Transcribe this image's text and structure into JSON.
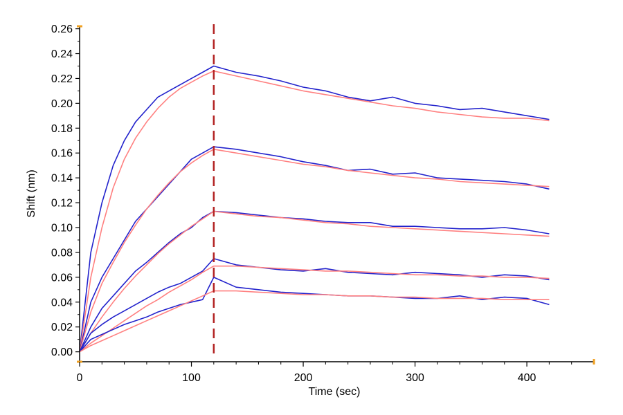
{
  "chart_data": {
    "type": "line",
    "title": "",
    "xlabel": "Time (sec)",
    "ylabel": "Shift (nm)",
    "xlim": [
      0,
      460
    ],
    "ylim": [
      -0.008,
      0.262
    ],
    "x_ticks": [
      0,
      100,
      200,
      300,
      400
    ],
    "x_tick_labels": [
      "0",
      "100",
      "200",
      "300",
      "400"
    ],
    "y_ticks": [
      0.0,
      0.02,
      0.04,
      0.06,
      0.08,
      0.1,
      0.12,
      0.14,
      0.16,
      0.18,
      0.2,
      0.22,
      0.24,
      0.26
    ],
    "y_tick_labels": [
      "0.00",
      "0.02",
      "0.04",
      "0.06",
      "0.08",
      "0.10",
      "0.12",
      "0.14",
      "0.16",
      "0.18",
      "0.20",
      "0.22",
      "0.24",
      "0.26"
    ],
    "grid": false,
    "legend": "none",
    "association_end_marker_x": 120,
    "colors": {
      "data_trace": "#2222cc",
      "fit_curve": "#ff8080",
      "marker_line": "#b22222",
      "axis": "#000000",
      "axis_end_caps": "#f0a020"
    },
    "series": [
      {
        "role": "measured",
        "x": [
          0,
          10,
          20,
          30,
          40,
          50,
          60,
          70,
          80,
          90,
          100,
          110,
          120,
          140,
          160,
          180,
          200,
          220,
          240,
          260,
          280,
          300,
          320,
          340,
          360,
          380,
          400,
          420
        ],
        "values": [
          0.0,
          0.08,
          0.12,
          0.15,
          0.17,
          0.185,
          0.195,
          0.205,
          0.21,
          0.215,
          0.22,
          0.225,
          0.23,
          0.225,
          0.222,
          0.218,
          0.213,
          0.21,
          0.205,
          0.202,
          0.205,
          0.2,
          0.198,
          0.195,
          0.196,
          0.193,
          0.19,
          0.187
        ]
      },
      {
        "role": "fit",
        "x": [
          0,
          10,
          20,
          30,
          40,
          50,
          60,
          70,
          80,
          90,
          100,
          110,
          120,
          140,
          160,
          180,
          200,
          220,
          240,
          260,
          280,
          300,
          320,
          340,
          360,
          380,
          400,
          420
        ],
        "values": [
          0.0,
          0.06,
          0.1,
          0.132,
          0.155,
          0.172,
          0.185,
          0.196,
          0.205,
          0.212,
          0.217,
          0.222,
          0.226,
          0.222,
          0.218,
          0.214,
          0.21,
          0.207,
          0.204,
          0.201,
          0.198,
          0.196,
          0.193,
          0.191,
          0.189,
          0.188,
          0.188,
          0.186
        ]
      },
      {
        "role": "measured",
        "x": [
          0,
          10,
          20,
          30,
          40,
          50,
          60,
          70,
          80,
          90,
          100,
          110,
          120,
          140,
          160,
          180,
          200,
          220,
          240,
          260,
          280,
          300,
          320,
          340,
          360,
          380,
          400,
          420
        ],
        "values": [
          0.0,
          0.04,
          0.06,
          0.075,
          0.09,
          0.105,
          0.115,
          0.125,
          0.135,
          0.145,
          0.155,
          0.16,
          0.165,
          0.163,
          0.16,
          0.157,
          0.153,
          0.15,
          0.146,
          0.147,
          0.143,
          0.144,
          0.14,
          0.139,
          0.138,
          0.137,
          0.135,
          0.131
        ]
      },
      {
        "role": "fit",
        "x": [
          0,
          10,
          20,
          30,
          40,
          50,
          60,
          70,
          80,
          90,
          100,
          110,
          120,
          140,
          160,
          180,
          200,
          220,
          240,
          260,
          280,
          300,
          320,
          340,
          360,
          380,
          400,
          420
        ],
        "values": [
          0.0,
          0.032,
          0.055,
          0.072,
          0.088,
          0.102,
          0.115,
          0.126,
          0.136,
          0.145,
          0.152,
          0.158,
          0.163,
          0.16,
          0.157,
          0.154,
          0.151,
          0.149,
          0.146,
          0.144,
          0.142,
          0.14,
          0.139,
          0.137,
          0.136,
          0.135,
          0.134,
          0.133
        ]
      },
      {
        "role": "measured",
        "x": [
          0,
          10,
          20,
          30,
          40,
          50,
          60,
          70,
          80,
          90,
          100,
          110,
          120,
          140,
          160,
          180,
          200,
          220,
          240,
          260,
          280,
          300,
          320,
          340,
          360,
          380,
          400,
          420
        ],
        "values": [
          0.0,
          0.02,
          0.035,
          0.045,
          0.055,
          0.065,
          0.072,
          0.08,
          0.088,
          0.095,
          0.1,
          0.108,
          0.113,
          0.112,
          0.11,
          0.108,
          0.107,
          0.105,
          0.104,
          0.104,
          0.101,
          0.101,
          0.1,
          0.099,
          0.099,
          0.1,
          0.098,
          0.095
        ]
      },
      {
        "role": "fit",
        "x": [
          0,
          10,
          20,
          30,
          40,
          50,
          60,
          70,
          80,
          90,
          100,
          110,
          120,
          140,
          160,
          180,
          200,
          220,
          240,
          260,
          280,
          300,
          320,
          340,
          360,
          380,
          400,
          420
        ],
        "values": [
          0.0,
          0.015,
          0.028,
          0.04,
          0.051,
          0.061,
          0.07,
          0.079,
          0.087,
          0.094,
          0.101,
          0.107,
          0.113,
          0.111,
          0.109,
          0.108,
          0.106,
          0.104,
          0.103,
          0.101,
          0.1,
          0.099,
          0.098,
          0.097,
          0.096,
          0.095,
          0.094,
          0.093
        ]
      },
      {
        "role": "measured",
        "x": [
          0,
          10,
          20,
          30,
          40,
          50,
          60,
          70,
          80,
          90,
          100,
          110,
          120,
          140,
          160,
          180,
          200,
          220,
          240,
          260,
          280,
          300,
          320,
          340,
          360,
          380,
          400,
          420
        ],
        "values": [
          0.0,
          0.015,
          0.022,
          0.028,
          0.033,
          0.038,
          0.043,
          0.048,
          0.052,
          0.055,
          0.06,
          0.065,
          0.075,
          0.07,
          0.068,
          0.066,
          0.065,
          0.067,
          0.064,
          0.063,
          0.062,
          0.064,
          0.063,
          0.062,
          0.06,
          0.062,
          0.061,
          0.058
        ]
      },
      {
        "role": "fit",
        "x": [
          0,
          10,
          20,
          30,
          40,
          50,
          60,
          70,
          80,
          90,
          100,
          110,
          120,
          140,
          160,
          180,
          200,
          220,
          240,
          260,
          280,
          300,
          320,
          340,
          360,
          380,
          400,
          420
        ],
        "values": [
          0.0,
          0.007,
          0.013,
          0.019,
          0.025,
          0.031,
          0.037,
          0.042,
          0.048,
          0.053,
          0.058,
          0.064,
          0.069,
          0.069,
          0.068,
          0.067,
          0.066,
          0.065,
          0.065,
          0.064,
          0.063,
          0.062,
          0.062,
          0.061,
          0.061,
          0.06,
          0.06,
          0.059
        ]
      },
      {
        "role": "measured",
        "x": [
          0,
          10,
          20,
          30,
          40,
          50,
          60,
          70,
          80,
          90,
          100,
          110,
          120,
          140,
          160,
          180,
          200,
          220,
          240,
          260,
          280,
          300,
          320,
          340,
          360,
          380,
          400,
          420
        ],
        "values": [
          0.0,
          0.01,
          0.014,
          0.018,
          0.022,
          0.025,
          0.028,
          0.032,
          0.035,
          0.038,
          0.04,
          0.042,
          0.06,
          0.052,
          0.05,
          0.048,
          0.047,
          0.046,
          0.045,
          0.045,
          0.044,
          0.043,
          0.043,
          0.045,
          0.042,
          0.044,
          0.043,
          0.038
        ]
      },
      {
        "role": "fit",
        "x": [
          0,
          10,
          20,
          30,
          40,
          50,
          60,
          70,
          80,
          90,
          100,
          110,
          120,
          140,
          160,
          180,
          200,
          220,
          240,
          260,
          280,
          300,
          320,
          340,
          360,
          380,
          400,
          420
        ],
        "values": [
          0.0,
          0.005,
          0.009,
          0.013,
          0.017,
          0.021,
          0.025,
          0.029,
          0.033,
          0.037,
          0.041,
          0.045,
          0.049,
          0.049,
          0.048,
          0.047,
          0.046,
          0.046,
          0.045,
          0.045,
          0.044,
          0.044,
          0.043,
          0.043,
          0.043,
          0.042,
          0.042,
          0.042
        ]
      }
    ]
  }
}
